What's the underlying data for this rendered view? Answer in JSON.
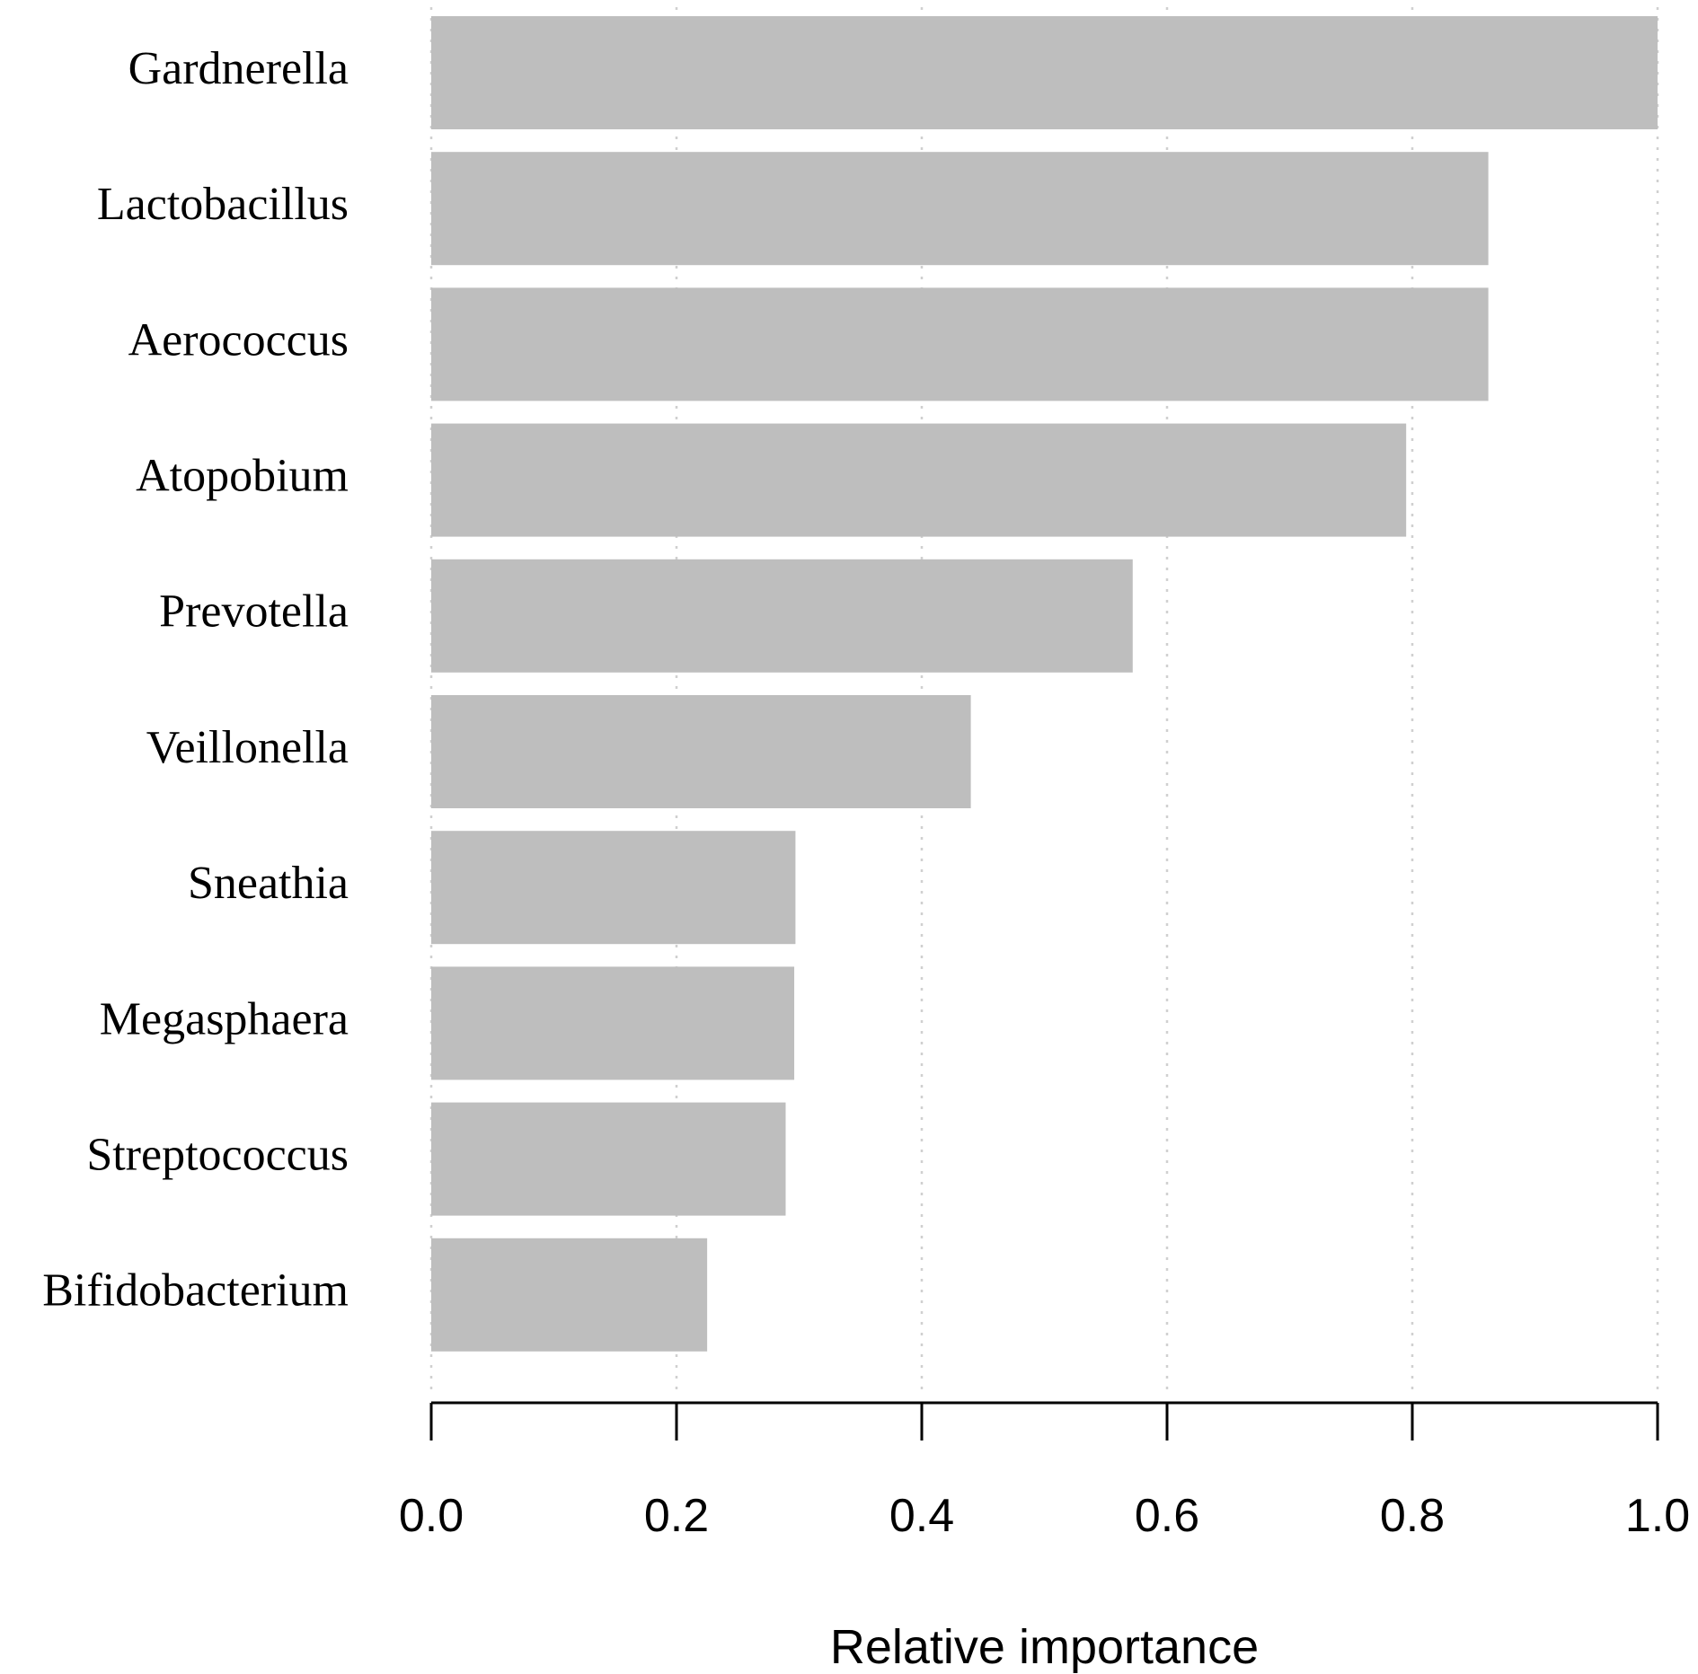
{
  "chart_data": {
    "type": "bar",
    "orientation": "horizontal",
    "categories": [
      "Gardnerella",
      "Lactobacillus",
      "Aerococcus",
      "Atopobium",
      "Prevotella",
      "Veillonella",
      "Sneathia",
      "Megasphaera",
      "Streptococcus",
      "Bifidobacterium"
    ],
    "values": [
      1.0,
      0.862,
      0.862,
      0.795,
      0.572,
      0.44,
      0.297,
      0.296,
      0.289,
      0.225
    ],
    "xlabel": "Relative importance",
    "ylabel": "",
    "xlim": [
      0,
      1
    ],
    "xticks": [
      0.0,
      0.2,
      0.4,
      0.6,
      0.8,
      1.0
    ],
    "xtick_labels": [
      "0.0",
      "0.2",
      "0.4",
      "0.6",
      "0.8",
      "1.0"
    ],
    "grid": "vertical dotted",
    "bar_color": "#bebebe"
  }
}
